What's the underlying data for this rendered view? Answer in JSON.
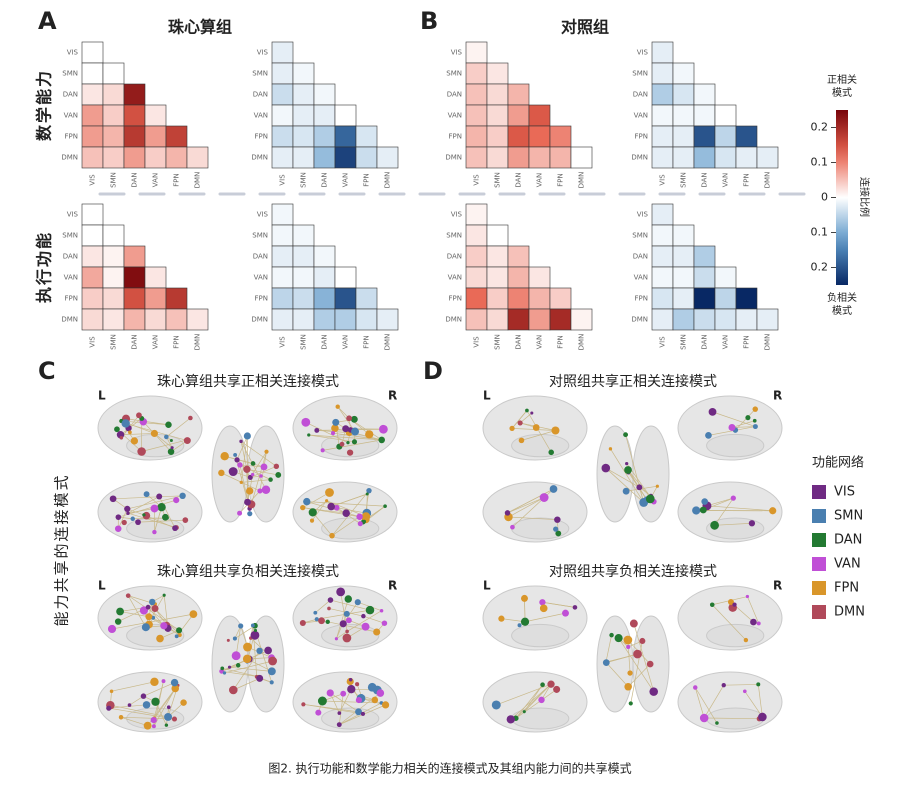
{
  "heatmaps": {
    "networks": [
      "VIS",
      "SMN",
      "DAN",
      "VAN",
      "FPN",
      "DMN"
    ],
    "row_labels": [
      "数学能力",
      "执行功能"
    ],
    "panels": [
      {
        "letter": "A",
        "title": "珠心算组",
        "grid": [
          [
            [
              [
                0
              ],
              [
                0,
                0
              ],
              [
                0.02,
                0.03,
                0.22
              ],
              [
                0.08,
                0.04,
                0.15,
                0.02
              ],
              [
                0.08,
                0.06,
                0.18,
                0.08,
                0.17
              ],
              [
                0.05,
                0.04,
                0.08,
                0.04,
                0.06,
                0.03
              ]
            ],
            [
              [
                -0.02
              ],
              [
                -0.02,
                -0.01
              ],
              [
                -0.04,
                -0.02,
                -0.01
              ],
              [
                -0.01,
                -0.02,
                -0.02,
                0
              ],
              [
                -0.04,
                -0.03,
                -0.06,
                -0.18,
                -0.03
              ],
              [
                -0.02,
                -0.02,
                -0.08,
                -0.22,
                -0.04,
                -0.02
              ]
            ]
          ],
          [
            [
              [
                0
              ],
              [
                0,
                0
              ],
              [
                0.02,
                0.01,
                0.08
              ],
              [
                0.07,
                0.01,
                0.24,
                0.02
              ],
              [
                0.04,
                0.03,
                0.15,
                0.08,
                0.18
              ],
              [
                0.03,
                0.02,
                0.06,
                0.03,
                0.05,
                0.02
              ]
            ],
            [
              [
                -0.01
              ],
              [
                -0.01,
                -0.01
              ],
              [
                -0.02,
                -0.02,
                -0.01
              ],
              [
                -0.01,
                -0.01,
                -0.02,
                0
              ],
              [
                -0.05,
                -0.04,
                -0.09,
                -0.2,
                -0.04
              ],
              [
                -0.02,
                -0.02,
                -0.06,
                -0.06,
                -0.03,
                -0.02
              ]
            ]
          ]
        ]
      },
      {
        "letter": "B",
        "title": "对照组",
        "grid": [
          [
            [
              [
                0.01
              ],
              [
                0.04,
                0.02
              ],
              [
                0.05,
                0.03,
                0.06
              ],
              [
                0.05,
                0.03,
                0.08,
                0.14
              ],
              [
                0.06,
                0.04,
                0.14,
                0.12,
                0.1
              ],
              [
                0.05,
                0.03,
                0.08,
                0.06,
                0.06,
                0
              ]
            ],
            [
              [
                -0.02
              ],
              [
                -0.02,
                -0.01
              ],
              [
                -0.06,
                -0.03,
                -0.01
              ],
              [
                -0.01,
                -0.01,
                -0.01,
                0
              ],
              [
                -0.02,
                -0.02,
                -0.2,
                -0.05,
                -0.2
              ],
              [
                -0.02,
                -0.02,
                -0.08,
                -0.03,
                -0.02,
                -0.02
              ]
            ]
          ],
          [
            [
              [
                0.01
              ],
              [
                0.02,
                0
              ],
              [
                0.04,
                0.02,
                0.05
              ],
              [
                0.03,
                0.02,
                0.06,
                0.02
              ],
              [
                0.12,
                0.04,
                0.1,
                0.06,
                0.04
              ],
              [
                0.05,
                0.03,
                0.2,
                0.08,
                0.2,
                0.01
              ]
            ],
            [
              [
                -0.02
              ],
              [
                -0.01,
                -0.01
              ],
              [
                -0.02,
                -0.02,
                -0.06
              ],
              [
                -0.01,
                -0.01,
                -0.04,
                -0.01
              ],
              [
                -0.03,
                -0.02,
                -0.25,
                -0.05,
                -0.25
              ],
              [
                -0.02,
                -0.06,
                -0.04,
                -0.03,
                -0.02,
                -0.02
              ]
            ]
          ]
        ]
      }
    ]
  },
  "colorbar": {
    "lim": [
      -0.25,
      0.25
    ],
    "ticks": [
      0.2,
      0.1,
      0,
      {
        "value": -0.1,
        "label": "0.1"
      },
      {
        "value": -0.2,
        "label": "0.2"
      }
    ],
    "top_label": [
      "正相关",
      "模式"
    ],
    "bottom_label": [
      "负相关",
      "模式"
    ],
    "side_label": "连接比例"
  },
  "brains": {
    "side_label": "能力共享的连接模式",
    "hemispheres": [
      "L",
      "R"
    ],
    "panels": [
      {
        "letter": "C",
        "titles": [
          "珠心算组共享正相关连接模式",
          "珠心算组共享负相关连接模式"
        ]
      },
      {
        "letter": "D",
        "titles": [
          "对照组共享正相关连接模式",
          "对照组共享负相关连接模式"
        ]
      }
    ]
  },
  "legend": {
    "title": "功能网络",
    "items": [
      {
        "name": "VIS",
        "color": "#6f2a83"
      },
      {
        "name": "SMN",
        "color": "#4a7fb0"
      },
      {
        "name": "DAN",
        "color": "#237a32"
      },
      {
        "name": "VAN",
        "color": "#c04fd6"
      },
      {
        "name": "FPN",
        "color": "#d9962a"
      },
      {
        "name": "DMN",
        "color": "#b0495a"
      }
    ]
  },
  "caption": "图2. 执行功能和数学能力相关的连接模式及其组内能力间的共享模式"
}
